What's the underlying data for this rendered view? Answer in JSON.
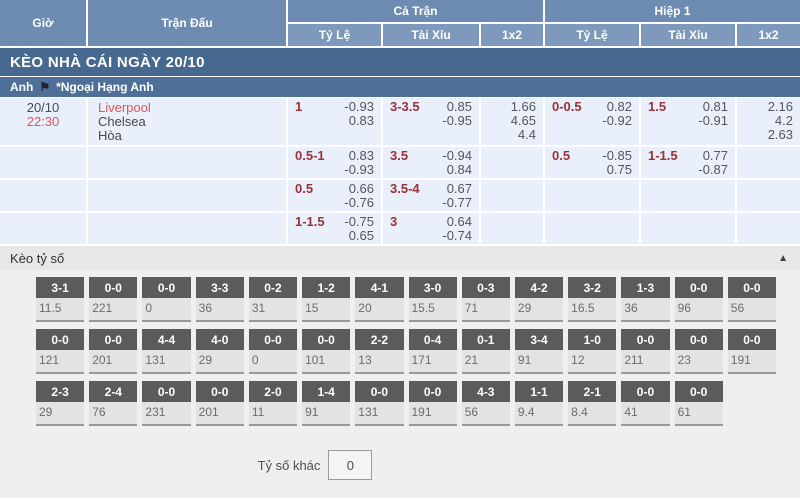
{
  "colors": {
    "header_blue": "#6e8cb2",
    "subheader_blue": "#7e99bc",
    "banner_blue": "#476990",
    "league_blue": "#4e7098",
    "body_bg": "#e9effb",
    "handicap_red": "#9a3139",
    "accent_red": "#e05457",
    "score_box_gray": "#5b5b5b",
    "section_gray": "#efefef"
  },
  "header": {
    "time": "Giờ",
    "match": "Trận Đấu",
    "full_match": "Cả Trận",
    "first_half": "Hiệp 1",
    "sub_handicap": "Tỷ Lệ",
    "sub_over_under": "Tài Xỉu",
    "sub_1x2": "1x2"
  },
  "banner": {
    "title": "KÈO NHÀ CÁI NGÀY 20/10"
  },
  "league": {
    "country": "Anh",
    "name": "*Ngoại Hạng Anh"
  },
  "match": {
    "date": "20/10",
    "time": "22:30",
    "home": "Liverpool",
    "away": "Chelsea",
    "draw": "Hòa"
  },
  "odds_rows": [
    {
      "full_hdp": {
        "line": "1",
        "odds": [
          "-0.93",
          "0.83"
        ]
      },
      "full_ou": {
        "line": "3-3.5",
        "odds": [
          "0.85",
          "-0.95"
        ]
      },
      "full_1x2": [
        "1.66",
        "4.65",
        "4.4"
      ],
      "half_hdp": {
        "line": "0-0.5",
        "odds": [
          "0.82",
          "-0.92"
        ]
      },
      "half_ou": {
        "line": "1.5",
        "odds": [
          "0.81",
          "-0.91"
        ]
      },
      "half_1x2": [
        "2.16",
        "4.2",
        "2.63"
      ]
    },
    {
      "full_hdp": {
        "line": "0.5-1",
        "odds": [
          "0.83",
          "-0.93"
        ]
      },
      "full_ou": {
        "line": "3.5",
        "odds": [
          "-0.94",
          "0.84"
        ]
      },
      "half_hdp": {
        "line": "0.5",
        "odds": [
          "-0.85",
          "0.75"
        ]
      },
      "half_ou": {
        "line": "1-1.5",
        "odds": [
          "0.77",
          "-0.87"
        ]
      }
    },
    {
      "full_hdp": {
        "line": "0.5",
        "odds": [
          "0.66",
          "-0.76"
        ]
      },
      "full_ou": {
        "line": "3.5-4",
        "odds": [
          "0.67",
          "-0.77"
        ]
      }
    },
    {
      "full_hdp": {
        "line": "1-1.5",
        "odds": [
          "-0.75",
          "0.65"
        ]
      },
      "full_ou": {
        "line": "3",
        "odds": [
          "0.64",
          "-0.74"
        ]
      }
    }
  ],
  "score_section": {
    "title": "Kèo tỷ số",
    "collapse_icon": "▲",
    "row1": [
      {
        "score": "3-1",
        "odd": "11.5"
      },
      {
        "score": "0-0",
        "odd": "221"
      },
      {
        "score": "0-0",
        "odd": "0"
      },
      {
        "score": "3-3",
        "odd": "36"
      },
      {
        "score": "0-2",
        "odd": "31"
      },
      {
        "score": "1-2",
        "odd": "15"
      },
      {
        "score": "4-1",
        "odd": "20"
      },
      {
        "score": "3-0",
        "odd": "15.5"
      },
      {
        "score": "0-3",
        "odd": "71"
      },
      {
        "score": "4-2",
        "odd": "29"
      },
      {
        "score": "3-2",
        "odd": "16.5"
      },
      {
        "score": "1-3",
        "odd": "36"
      },
      {
        "score": "0-0",
        "odd": "96"
      },
      {
        "score": "0-0",
        "odd": "56"
      }
    ],
    "row2": [
      {
        "score": "0-0",
        "odd": "121"
      },
      {
        "score": "0-0",
        "odd": "201"
      },
      {
        "score": "4-4",
        "odd": "131"
      },
      {
        "score": "4-0",
        "odd": "29"
      },
      {
        "score": "0-0",
        "odd": "0"
      },
      {
        "score": "0-0",
        "odd": "101"
      },
      {
        "score": "2-2",
        "odd": "13"
      },
      {
        "score": "0-4",
        "odd": "171"
      },
      {
        "score": "0-1",
        "odd": "21"
      },
      {
        "score": "3-4",
        "odd": "91"
      },
      {
        "score": "1-0",
        "odd": "12"
      },
      {
        "score": "0-0",
        "odd": "211"
      },
      {
        "score": "0-0",
        "odd": "23"
      },
      {
        "score": "0-0",
        "odd": "191"
      }
    ],
    "row3": [
      {
        "score": "2-3",
        "odd": "29"
      },
      {
        "score": "2-4",
        "odd": "76"
      },
      {
        "score": "0-0",
        "odd": "231"
      },
      {
        "score": "0-0",
        "odd": "201"
      },
      {
        "score": "2-0",
        "odd": "11"
      },
      {
        "score": "1-4",
        "odd": "91"
      },
      {
        "score": "0-0",
        "odd": "131"
      },
      {
        "score": "0-0",
        "odd": "191"
      },
      {
        "score": "4-3",
        "odd": "56"
      },
      {
        "score": "1-1",
        "odd": "9.4"
      },
      {
        "score": "2-1",
        "odd": "8.4"
      },
      {
        "score": "0-0",
        "odd": "41"
      },
      {
        "score": "0-0",
        "odd": "61"
      },
      {
        "score": "",
        "odd": ""
      }
    ],
    "other_label": "Tỷ số khác",
    "other_value": "0"
  }
}
